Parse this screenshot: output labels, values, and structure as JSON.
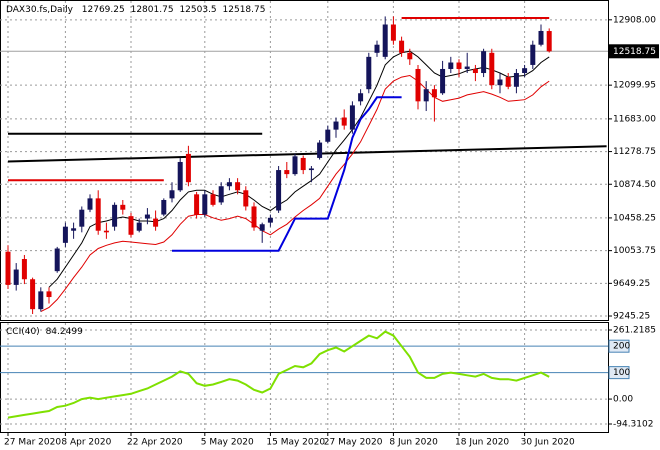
{
  "chart_data": [
    {
      "type": "candlestick",
      "title": "DAX30.fs,Daily",
      "categories": [
        "27 Mar 2020",
        null,
        null,
        null,
        null,
        null,
        null,
        "8 Apr 2020",
        null,
        null,
        null,
        null,
        null,
        null,
        null,
        "22 Apr 2020",
        null,
        null,
        null,
        null,
        null,
        null,
        null,
        null,
        "5 May 2020",
        null,
        null,
        null,
        null,
        null,
        null,
        null,
        "15 May 2020",
        null,
        null,
        null,
        null,
        null,
        null,
        "27 May 2020",
        null,
        null,
        null,
        null,
        null,
        null,
        null,
        "8 Jun 2020",
        null,
        null,
        null,
        null,
        null,
        null,
        null,
        "18 Jun 2020",
        null,
        null,
        null,
        null,
        null,
        null,
        null,
        "30 Jun 2020",
        null,
        null,
        null
      ],
      "open": [
        10040,
        9630,
        9950,
        9700,
        9330,
        9550,
        9800,
        10150,
        10300,
        10350,
        10560,
        10700,
        10300,
        10350,
        10620,
        10480,
        10300,
        10450,
        10450,
        10500,
        10700,
        10800,
        11250,
        10750,
        10500,
        10750,
        10650,
        10850,
        10900,
        10800,
        10600,
        10300,
        10400,
        10550,
        11050,
        11000,
        11200,
        11050,
        11200,
        11400,
        11550,
        11700,
        11550,
        11900,
        12050,
        12500,
        12450,
        12850,
        12650,
        12500,
        12300,
        11900,
        12050,
        12000,
        12300,
        12380,
        12300,
        12300,
        12250,
        12500,
        12100,
        12200,
        12080,
        12250,
        12350,
        12600,
        12769.25
      ],
      "high": [
        10120,
        9900,
        10000,
        9720,
        9600,
        9600,
        10100,
        10400,
        10400,
        10600,
        10750,
        10800,
        10400,
        10650,
        10680,
        10520,
        10450,
        10580,
        10550,
        10700,
        10900,
        11200,
        11350,
        10780,
        10800,
        10800,
        10900,
        10950,
        10950,
        10850,
        10650,
        10400,
        10500,
        11100,
        11150,
        11250,
        11230,
        11100,
        11420,
        11600,
        11700,
        11800,
        11900,
        12050,
        12500,
        12650,
        12950,
        12950,
        12700,
        12550,
        12350,
        12150,
        12100,
        12400,
        12450,
        12420,
        12500,
        12350,
        12550,
        12550,
        12250,
        12250,
        12300,
        12350,
        12650,
        12850,
        12801.75
      ],
      "low": [
        9580,
        9560,
        9640,
        9270,
        9300,
        9400,
        9780,
        10100,
        10200,
        10280,
        10530,
        10250,
        10200,
        10300,
        10500,
        10220,
        10280,
        10380,
        10300,
        10480,
        10650,
        10780,
        10850,
        10450,
        10470,
        10600,
        10620,
        10800,
        10750,
        10550,
        10300,
        10150,
        10350,
        10520,
        10950,
        10980,
        11000,
        10900,
        11180,
        11380,
        11450,
        11550,
        11500,
        11850,
        12000,
        12450,
        12420,
        12600,
        12450,
        12350,
        11800,
        11780,
        11650,
        11980,
        12250,
        12200,
        12250,
        12150,
        12200,
        12050,
        12000,
        12050,
        12000,
        12200,
        12300,
        12580,
        12503.5
      ],
      "close": [
        9630,
        9820,
        9700,
        9330,
        9550,
        9480,
        10080,
        10350,
        10330,
        10560,
        10700,
        10300,
        10280,
        10620,
        10560,
        10250,
        10400,
        10500,
        10350,
        10680,
        10800,
        11150,
        10900,
        10500,
        10750,
        10620,
        10850,
        10900,
        10800,
        10600,
        10340,
        10380,
        10460,
        11050,
        11000,
        11220,
        11050,
        11070,
        11390,
        11550,
        11650,
        11600,
        11850,
        12000,
        12450,
        12600,
        12850,
        12650,
        12500,
        12420,
        11900,
        12050,
        11950,
        12300,
        12380,
        12300,
        12330,
        12250,
        12520,
        12100,
        12170,
        12080,
        12250,
        12310,
        12600,
        12770,
        12518.75
      ],
      "up_color": "#14145a",
      "down_color": "#e00000",
      "overlays": [
        {
          "color": "#000000",
          "values": [
            null,
            null,
            null,
            null,
            null,
            9600,
            9700,
            9850,
            10000,
            10150,
            10350,
            10400,
            10420,
            10450,
            10470,
            10450,
            10420,
            10420,
            10410,
            10450,
            10550,
            10680,
            10780,
            10800,
            10800,
            10750,
            10720,
            10750,
            10780,
            10750,
            10680,
            10600,
            10550,
            10620,
            10680,
            10780,
            10850,
            10920,
            11000,
            11150,
            11300,
            11420,
            11550,
            11700,
            11900,
            12100,
            12350,
            12450,
            12500,
            12520,
            12450,
            12350,
            12250,
            12200,
            12220,
            12240,
            12280,
            12300,
            12320,
            12290,
            12250,
            12200,
            12210,
            12220,
            12280,
            12380,
            12450
          ]
        },
        {
          "color": "#e00000",
          "values": [
            null,
            null,
            null,
            null,
            9300,
            9350,
            9450,
            9580,
            9720,
            9850,
            10000,
            10080,
            10120,
            10150,
            10170,
            10160,
            10150,
            10140,
            10130,
            10160,
            10250,
            10380,
            10480,
            10500,
            10500,
            10460,
            10430,
            10450,
            10480,
            10450,
            10380,
            10300,
            10250,
            10320,
            10380,
            10470,
            10550,
            10620,
            10700,
            10850,
            11000,
            11120,
            11250,
            11400,
            11600,
            11800,
            12050,
            12150,
            12200,
            12220,
            12150,
            12050,
            11950,
            11900,
            11920,
            11940,
            11980,
            12000,
            12020,
            11990,
            11950,
            11900,
            11910,
            11920,
            11980,
            12080,
            12150
          ]
        },
        {
          "color": "#0000dd",
          "values": [
            null,
            null,
            null,
            null,
            null,
            null,
            null,
            null,
            null,
            null,
            null,
            null,
            null,
            null,
            null,
            null,
            null,
            null,
            null,
            null,
            10053,
            10053,
            10053,
            10053,
            10053,
            10053,
            10053,
            10053,
            10053,
            10053,
            10053,
            10053,
            10053,
            10053,
            10250,
            10450,
            10450,
            10450,
            10450,
            10450,
            10750,
            11050,
            11450,
            11680,
            11800,
            11950,
            11950,
            11950,
            11950,
            null,
            null,
            null,
            null,
            null,
            null,
            null,
            null,
            null,
            null,
            null,
            null,
            null,
            null,
            null,
            null,
            null,
            null
          ]
        }
      ],
      "lines": [
        {
          "color": "#000000",
          "x": [
            0,
            31
          ],
          "values": [
            11499,
            11499
          ]
        },
        {
          "color": "#e00000",
          "x": [
            0,
            19
          ],
          "values": [
            10924,
            10924
          ]
        },
        {
          "color": "#e00000",
          "x": [
            48,
            66
          ],
          "values": [
            12930,
            12930
          ]
        },
        {
          "color": "#000000",
          "x": [
            0,
            73
          ],
          "values": [
            11156,
            11345
          ]
        }
      ],
      "ylim": [
        9196,
        13153
      ],
      "yticks": [
        {
          "value": 12908,
          "label": "12908.00"
        },
        12099.95,
        {
          "value": 11683,
          "label": "11683.00"
        },
        11278.75,
        {
          "value": 10874.5,
          "label": "10874.50"
        },
        10458.25,
        10053.75,
        9649.25,
        9245.25
      ],
      "grid": true
    },
    {
      "type": "line",
      "title": "CCI(40)",
      "color": "#7fe000",
      "values": [
        -70,
        -65,
        -60,
        -55,
        -50,
        -45,
        -30,
        -25,
        -15,
        0,
        5,
        0,
        5,
        10,
        15,
        20,
        30,
        40,
        55,
        70,
        85,
        105,
        95,
        60,
        50,
        55,
        65,
        75,
        70,
        55,
        35,
        25,
        40,
        95,
        110,
        125,
        120,
        135,
        170,
        185,
        195,
        180,
        200,
        220,
        240,
        230,
        255,
        240,
        200,
        160,
        100,
        80,
        80,
        95,
        100,
        95,
        90,
        85,
        95,
        80,
        75,
        75,
        70,
        80,
        90,
        100,
        84.2499
      ],
      "ylim": [
        -94.3102,
        261.2185
      ],
      "yticks": [
        261.2185,
        {
          "value": 0,
          "label": "0.00"
        },
        -94.3102
      ],
      "levels": [
        200,
        100
      ],
      "level_color": "#4682b4",
      "grid": true
    }
  ]
}
